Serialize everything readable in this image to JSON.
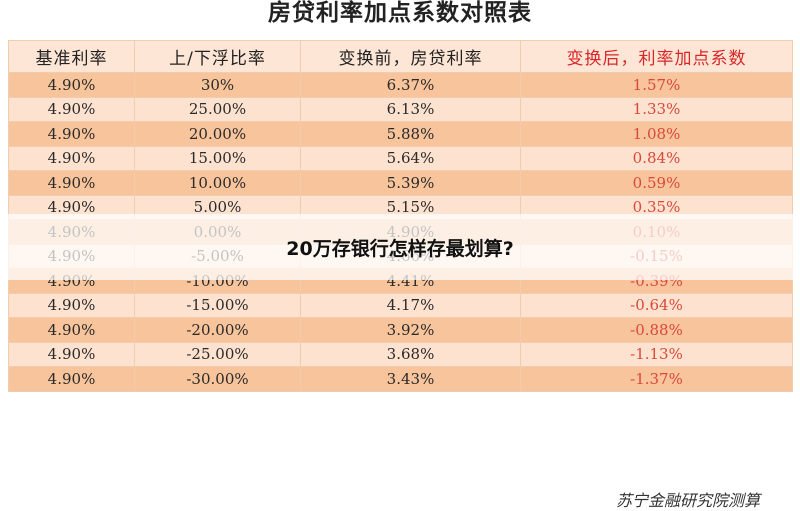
{
  "title": "房贷利率加点系数对照表",
  "overlay_title": "20万存银行怎样存最划算?",
  "source": "苏宁金融研究院测算",
  "colors": {
    "row_dark": "#f8c49c",
    "row_light": "#fde2d0",
    "header_bg": "#fde6d6",
    "accent_red": "#d9262b"
  },
  "table": {
    "headers": [
      "基准利率",
      "上/下浮比率",
      "变换前，房贷利率",
      "变换后，利率加点系数"
    ],
    "rows": [
      [
        "4.90%",
        "30%",
        "6.37%",
        "1.57%"
      ],
      [
        "4.90%",
        "25.00%",
        "6.13%",
        "1.33%"
      ],
      [
        "4.90%",
        "20.00%",
        "5.88%",
        "1.08%"
      ],
      [
        "4.90%",
        "15.00%",
        "5.64%",
        "0.84%"
      ],
      [
        "4.90%",
        "10.00%",
        "5.39%",
        "0.59%"
      ],
      [
        "4.90%",
        "5.00%",
        "5.15%",
        "0.35%"
      ],
      [
        "4.90%",
        "0.00%",
        "4.90%",
        "0.10%"
      ],
      [
        "4.90%",
        "-5.00%",
        "4.66%",
        "-0.15%"
      ],
      [
        "4.90%",
        "-10.00%",
        "4.41%",
        "-0.39%"
      ],
      [
        "4.90%",
        "-15.00%",
        "4.17%",
        "-0.64%"
      ],
      [
        "4.90%",
        "-20.00%",
        "3.92%",
        "-0.88%"
      ],
      [
        "4.90%",
        "-25.00%",
        "3.68%",
        "-1.13%"
      ],
      [
        "4.90%",
        "-30.00%",
        "3.43%",
        "-1.37%"
      ]
    ]
  }
}
